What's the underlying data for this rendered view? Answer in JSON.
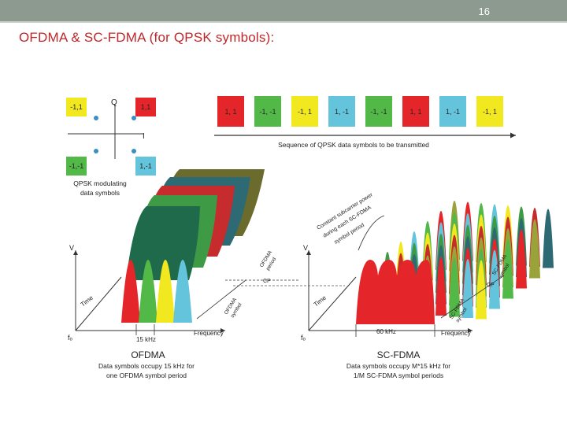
{
  "slide": {
    "page_number": "16",
    "title": "OFDMA & SC-FDMA (for QPSK symbols):"
  },
  "constellation": {
    "axis_q": "Q",
    "axis_i": "I",
    "points": [
      {
        "label": "-1,1",
        "color": "#f2e81f"
      },
      {
        "label": "1,1",
        "color": "#e4262b"
      },
      {
        "label": "-1,-1",
        "color": "#52b848"
      },
      {
        "label": "1,-1",
        "color": "#63c4dc"
      }
    ],
    "caption_line1": "QPSK modulating",
    "caption_line2": "data symbols"
  },
  "sequence": {
    "symbols": [
      {
        "label": "1, 1",
        "color": "#e4262b"
      },
      {
        "label": "-1, -1",
        "color": "#52b848"
      },
      {
        "label": "-1, 1",
        "color": "#f2e81f"
      },
      {
        "label": "1, -1",
        "color": "#63c4dc"
      },
      {
        "label": "-1, -1",
        "color": "#52b848"
      },
      {
        "label": "1, 1",
        "color": "#e4262b"
      },
      {
        "label": "1, -1",
        "color": "#63c4dc"
      },
      {
        "label": "-1, 1",
        "color": "#f2e81f"
      }
    ],
    "caption": "Sequence of QPSK data symbols to be transmitted"
  },
  "ofdma": {
    "v_label": "V",
    "time_label": "Time",
    "origin_label": "fₒ",
    "freq_label": "Frequency",
    "bw_label": "15 kHz",
    "cp_label": "CP",
    "period_label_line1": "OFDMA",
    "period_label_line2": "symbol",
    "period_label2_line1": "OFDMA",
    "period_label2_line2": "period",
    "name": "OFDMA",
    "caption_line1": "Data symbols occupy 15 kHz for",
    "caption_line2": "one OFDMA symbol period"
  },
  "scfdma": {
    "v_label": "V",
    "time_label": "Time",
    "origin_label": "fₒ",
    "freq_label": "Frequency",
    "bw_label": "60 kHz",
    "cp_label": "CP",
    "annot_line1": "Constant subcarrier power",
    "annot_line2": "during each SC-FDMA",
    "annot_line3": "symbol period",
    "period_label_line1": "SC-FDMA",
    "period_label_line2": "symbol",
    "period_label2_line1": "SC-FDMA",
    "period_label2_line2": "symbol",
    "name": "SC-FDMA",
    "caption_line1": "Data symbols occupy M*15 kHz for",
    "caption_line2": "1/M SC-FDMA symbol periods"
  }
}
